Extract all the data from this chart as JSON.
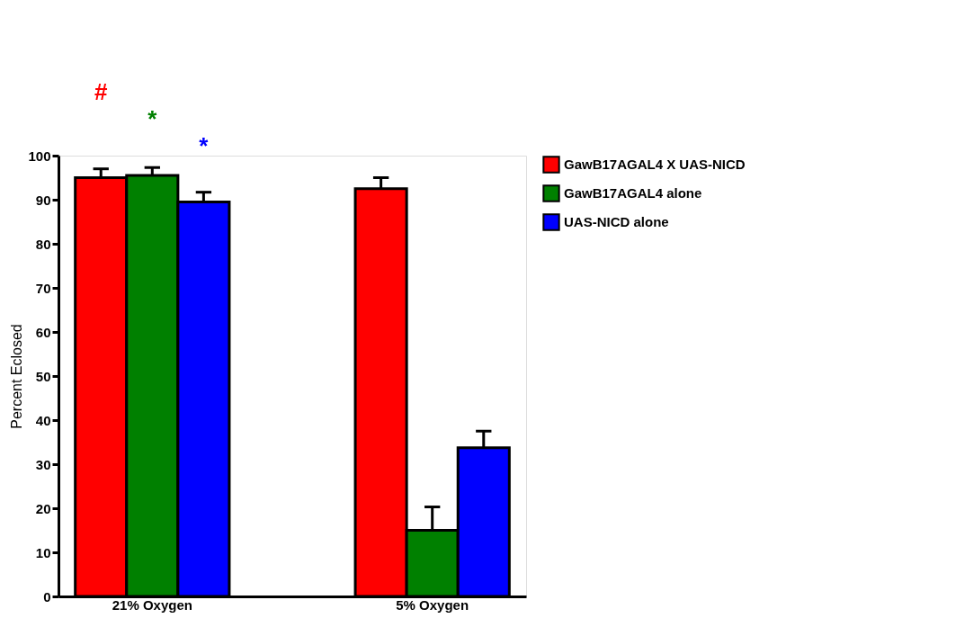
{
  "chart_data": {
    "type": "bar",
    "ylabel": "Percent Eclosed",
    "categories": [
      "21% Oxygen",
      "5% Oxygen"
    ],
    "series": [
      {
        "name": "GawB17AGAL4 X UAS-NICD",
        "color": "#ff0000",
        "values": [
          95,
          92.5
        ],
        "errors": [
          [
            95,
            97
          ],
          [
            92.5,
            95
          ]
        ]
      },
      {
        "name": "GawB17AGAL4 alone",
        "color": "#008000",
        "values": [
          95.5,
          15
        ],
        "errors": [
          [
            95.5,
            97.3
          ],
          [
            15,
            20.3
          ]
        ]
      },
      {
        "name": "UAS-NICD alone",
        "color": "#0000ff",
        "values": [
          89.5,
          33.7
        ],
        "errors": [
          [
            89.5,
            91.7
          ],
          [
            33.7,
            37.5
          ]
        ]
      }
    ],
    "ylim": [
      0,
      100
    ],
    "yticks": [
      0,
      10,
      20,
      30,
      40,
      50,
      60,
      70,
      80,
      90,
      100
    ],
    "annotations": [
      "#",
      "*",
      "*"
    ],
    "grid": false,
    "legend": "top right"
  }
}
